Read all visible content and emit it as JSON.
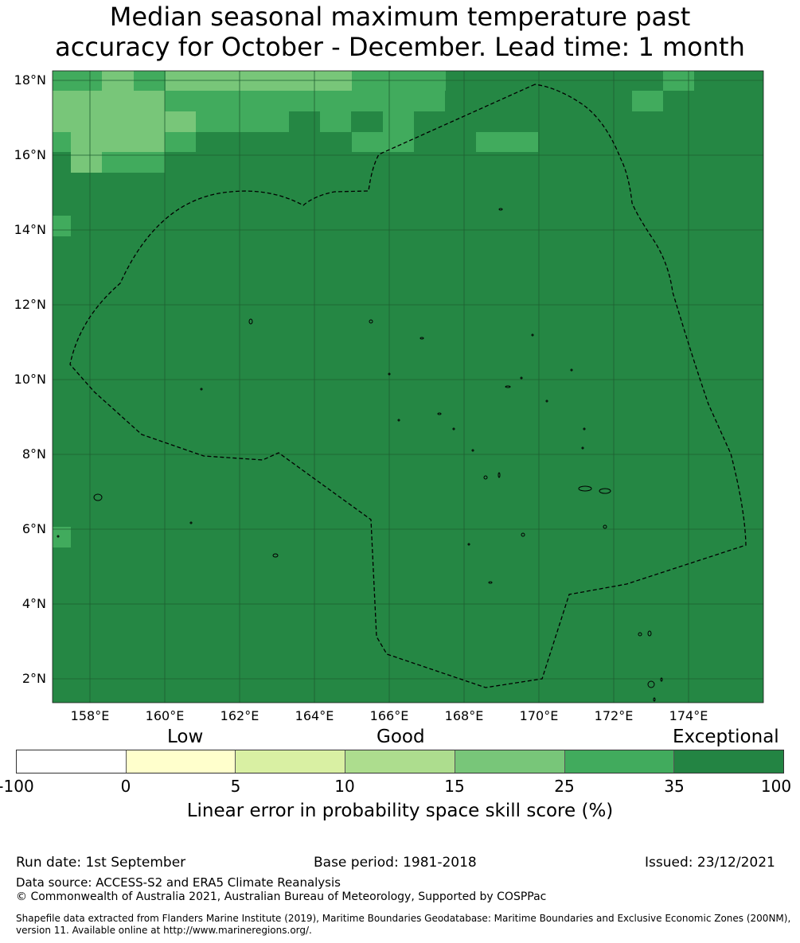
{
  "title": {
    "line1": "Median seasonal maximum temperature past",
    "line2": "accuracy for October - December. Lead time: 1 month"
  },
  "map": {
    "background_color": "#258744",
    "lat_labels": [
      "18°N",
      "16°N",
      "14°N",
      "12°N",
      "10°N",
      "8°N",
      "6°N",
      "4°N",
      "2°N"
    ],
    "lon_labels": [
      "158°E",
      "160°E",
      "162°E",
      "164°E",
      "166°E",
      "168°E",
      "170°E",
      "172°E",
      "174°E"
    ],
    "boundary_style": "dashed black line (EEZ)",
    "icons": [
      "eez-boundary",
      "island-outline"
    ]
  },
  "colorbar": {
    "categories": {
      "low": "Low",
      "good": "Good",
      "exceptional": "Exceptional"
    },
    "colors": [
      "#ffffff",
      "#ffffcc",
      "#d9f0a3",
      "#addd8e",
      "#78c679",
      "#41ab5d",
      "#238443"
    ],
    "ticks": [
      "-100",
      "0",
      "5",
      "10",
      "15",
      "25",
      "35",
      "100"
    ],
    "label": "Linear error in probability space skill score (%)"
  },
  "footer": {
    "run_date": "Run date: 1st September",
    "base_period": "Base period: 1981-2018",
    "issued": "Issued: 23/12/2021",
    "data_source": "Data source: ACCESS-S2 and ERA5 Climate Reanalysis",
    "copyright": "© Commonwealth of Australia 2021, Australian Bureau of Meteorology, Supported by COSPPac",
    "shapefile_line1": "Shapefile data extracted from Flanders Marine Institute (2019), Maritime Boundaries Geodatabase: Maritime Boundaries and Exclusive Economic Zones (200NM),",
    "shapefile_line2": "version 11. Available online at http://www.marineregions.org/."
  }
}
